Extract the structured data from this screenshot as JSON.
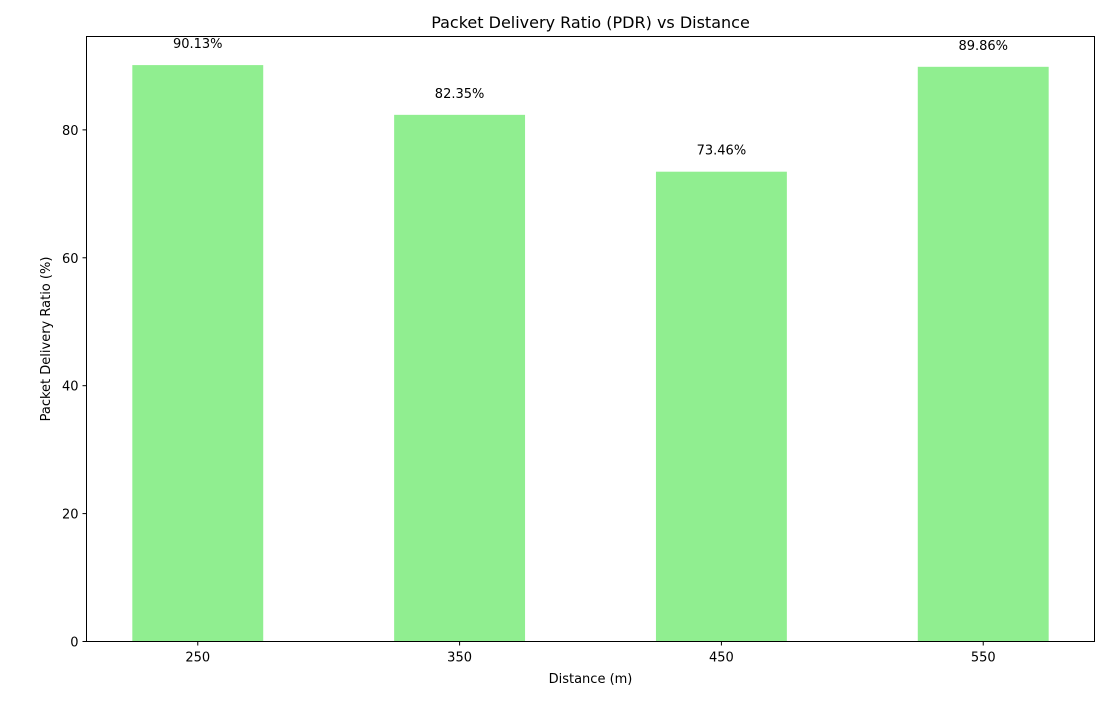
{
  "chart_data": {
    "type": "bar",
    "title": "Packet Delivery Ratio (PDR) vs Distance",
    "xlabel": "Distance (m)",
    "ylabel": "Packet Delivery Ratio (%)",
    "categories": [
      "250",
      "350",
      "450",
      "550"
    ],
    "values": [
      90.13,
      82.35,
      73.46,
      89.86
    ],
    "data_labels": [
      "90.13%",
      "82.35%",
      "73.46%",
      "89.86%"
    ],
    "yticks": [
      0,
      20,
      40,
      60,
      80
    ],
    "ylim": [
      0,
      94.6
    ],
    "bar_color": "#90ee90",
    "grid": false,
    "legend": "none"
  }
}
